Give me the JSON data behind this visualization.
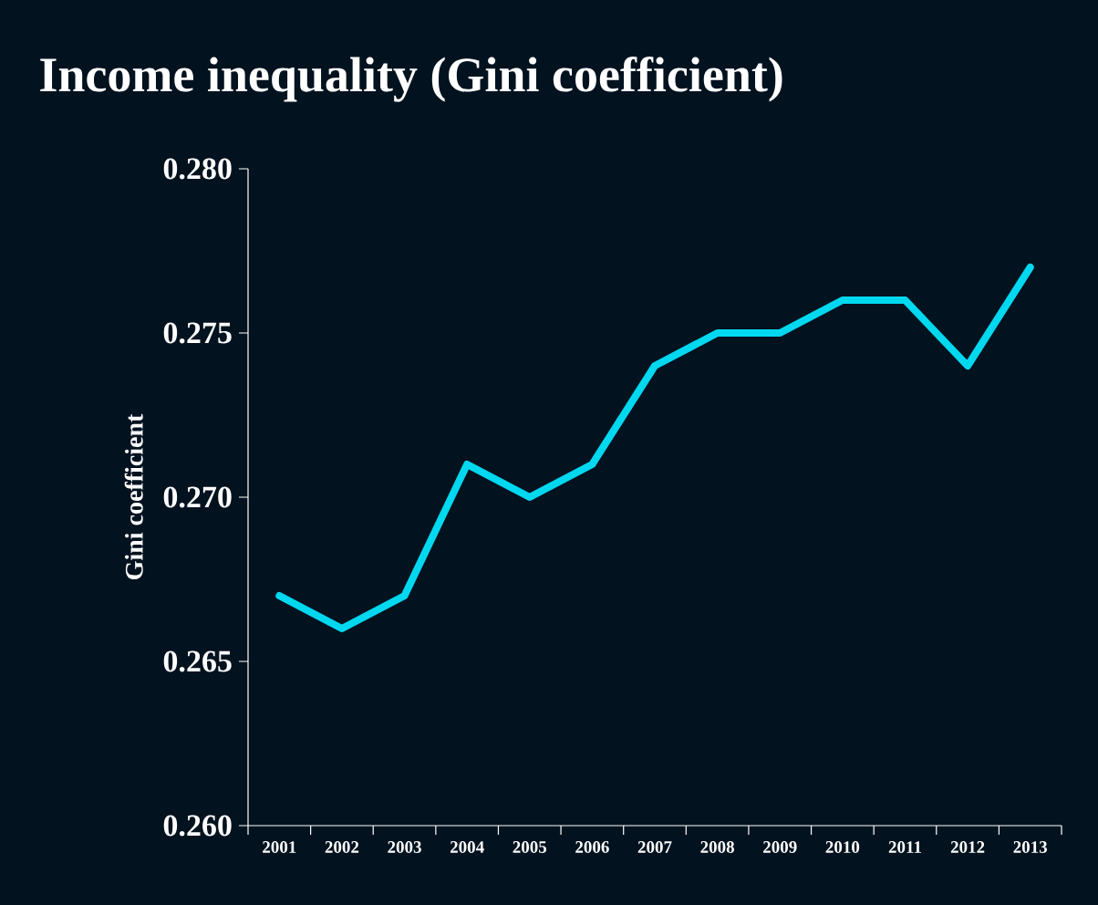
{
  "chart_data": {
    "type": "line",
    "title": "Income inequality (Gini coefficient)",
    "ylabel": "Gini coefficient",
    "categories": [
      "2001",
      "2002",
      "2003",
      "2004",
      "2005",
      "2006",
      "2007",
      "2008",
      "2009",
      "2010",
      "2011",
      "2012",
      "2013"
    ],
    "values": [
      0.267,
      0.266,
      0.267,
      0.271,
      0.27,
      0.271,
      0.274,
      0.275,
      0.275,
      0.276,
      0.276,
      0.274,
      0.277
    ],
    "color": "#00d8f0",
    "ylim": [
      0.26,
      0.28
    ],
    "yticks": [
      {
        "value": 0.26,
        "label": "0.260"
      },
      {
        "value": 0.265,
        "label": "0.265"
      },
      {
        "value": 0.27,
        "label": "0.270"
      },
      {
        "value": 0.275,
        "label": "0.275"
      },
      {
        "value": 0.28,
        "label": "0.280"
      }
    ]
  }
}
